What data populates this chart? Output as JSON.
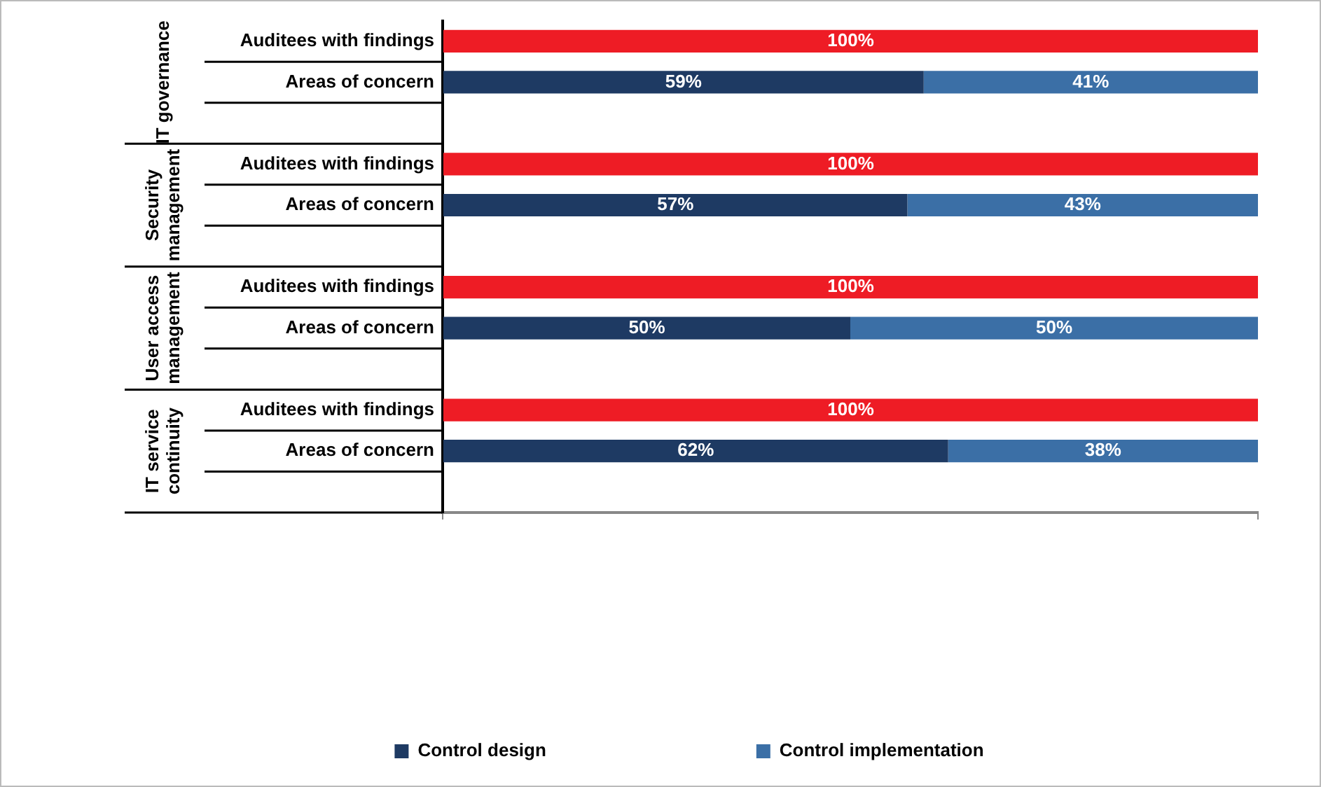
{
  "chart_data": {
    "type": "bar",
    "orientation": "horizontal",
    "stacked": true,
    "categories": [
      "Auditees with findings",
      "Areas of concern",
      null,
      "Auditees with findings",
      "Areas of concern",
      null,
      "Auditees with findings",
      "Areas of concern",
      null,
      "Auditees with findings",
      "Areas of concern",
      null
    ],
    "series": [
      {
        "color": "#ee1c25",
        "values": [
          100,
          null,
          null,
          100,
          null,
          null,
          100,
          null,
          null,
          100,
          null,
          null
        ],
        "value_labels": [
          "100%",
          null,
          null,
          "100%",
          null,
          null,
          "100%",
          null,
          null,
          "100%",
          null,
          null
        ]
      },
      {
        "name": "Control design",
        "color": "#1e3a63",
        "values": [
          null,
          59,
          null,
          null,
          57,
          null,
          null,
          50,
          null,
          null,
          62,
          null
        ],
        "value_labels": [
          null,
          "59%",
          null,
          null,
          "57%",
          null,
          null,
          "50%",
          null,
          null,
          "62%",
          null
        ]
      },
      {
        "name": "Control implementation",
        "color": "#3b6fa6",
        "values": [
          null,
          41,
          null,
          null,
          43,
          null,
          null,
          50,
          null,
          null,
          38,
          null
        ],
        "value_labels": [
          null,
          "41%",
          null,
          null,
          "43%",
          null,
          null,
          "50%",
          null,
          null,
          "38%",
          null
        ]
      }
    ],
    "xlim": [
      0,
      100
    ],
    "xticks": [
      {
        "value": 0,
        "label": null
      },
      {
        "value": 100,
        "label": null
      }
    ],
    "tick_labels": "y",
    "grid": false,
    "legend": "bottom",
    "annotations": [
      "IT governance",
      "Security management",
      "User access management",
      "IT service continuity"
    ]
  }
}
